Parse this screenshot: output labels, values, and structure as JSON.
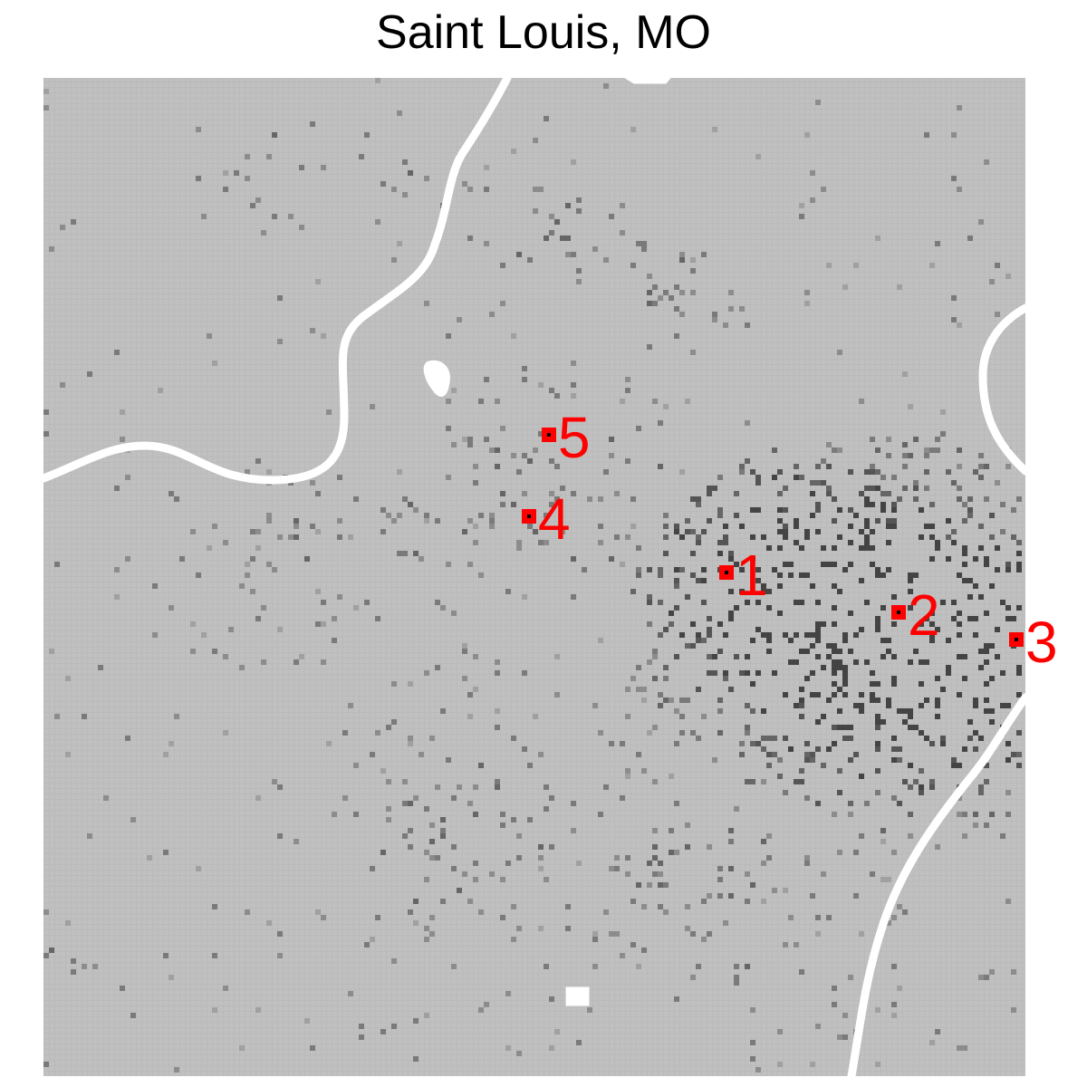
{
  "title": "Saint Louis, MO",
  "colors": {
    "background": "#bfbfbf",
    "grid": "#b3b3b3",
    "water": "#ffffff",
    "density_light": "#8c8c8c",
    "density_dark": "#404040",
    "marker": "#ff0000",
    "marker_center": "#000000"
  },
  "markers": [
    {
      "label": "1",
      "rank": 1
    },
    {
      "label": "2",
      "rank": 2
    },
    {
      "label": "3",
      "rank": 3
    },
    {
      "label": "4",
      "rank": 4
    },
    {
      "label": "5",
      "rank": 5
    }
  ]
}
